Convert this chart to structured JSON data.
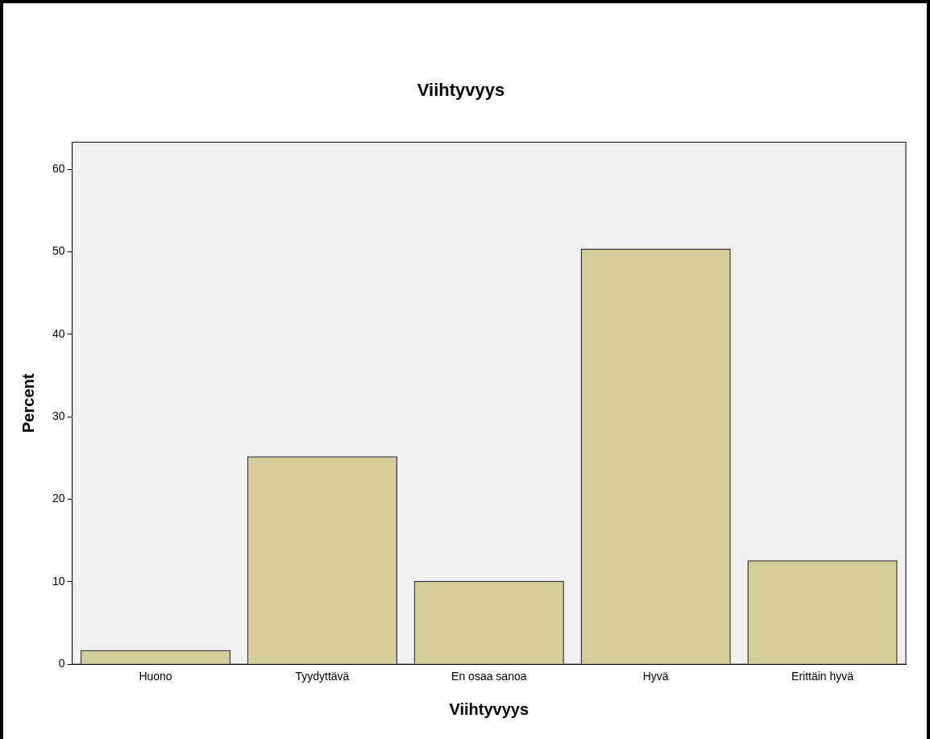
{
  "chart_data": {
    "type": "bar",
    "title": "Viihtyvyys",
    "xlabel": "Viihtyvyys",
    "ylabel": "Percent",
    "categories": [
      "Huono",
      "Tyydyttävä",
      "En osaa sanoa",
      "Hyvä",
      "Erittäin hyvä"
    ],
    "values": [
      1.7,
      25.2,
      10.1,
      50.4,
      12.6
    ],
    "color": "#d3ce97",
    "ylim": [
      0,
      63.3
    ],
    "yticks": [
      0,
      10,
      20,
      30,
      40,
      50,
      60
    ],
    "grid": false,
    "legend": false
  }
}
